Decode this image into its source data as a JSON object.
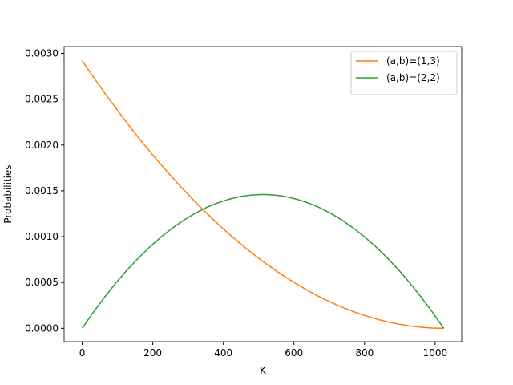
{
  "chart_data": {
    "type": "line",
    "xlabel": "K",
    "ylabel": "Probabilities",
    "x": [
      0,
      32,
      64,
      96,
      128,
      160,
      192,
      224,
      256,
      288,
      320,
      352,
      384,
      416,
      448,
      480,
      512,
      544,
      576,
      608,
      640,
      672,
      704,
      736,
      768,
      800,
      832,
      864,
      896,
      928,
      960,
      992,
      1024
    ],
    "series": [
      {
        "name": "(a,b)=(1,3)",
        "color": "#ff7f0e",
        "values": [
          0.002921,
          0.002741,
          0.002567,
          0.002399,
          0.002236,
          0.002079,
          0.001928,
          0.001783,
          0.001643,
          0.001509,
          0.001381,
          0.001258,
          0.001141,
          0.00103,
          0.000924,
          0.000824,
          0.00073,
          0.000642,
          0.000559,
          0.000482,
          0.000411,
          0.000345,
          0.000285,
          0.000231,
          0.000183,
          0.00014,
          0.000103,
          7.1e-05,
          4.6e-05,
          2.6e-05,
          1.1e-05,
          3e-06,
          0
        ]
      },
      {
        "name": "(a,b)=(2,2)",
        "color": "#2ca02c",
        "values": [
          0,
          0.000177,
          0.000342,
          0.000496,
          0.000639,
          0.00077,
          0.00089,
          0.000998,
          0.001095,
          0.001181,
          0.001255,
          0.001318,
          0.001369,
          0.001409,
          0.001438,
          0.001455,
          0.001461,
          0.001455,
          0.001438,
          0.001409,
          0.001369,
          0.001318,
          0.001255,
          0.001181,
          0.001095,
          0.000998,
          0.00089,
          0.00077,
          0.000639,
          0.000496,
          0.000342,
          0.000177,
          0
        ]
      }
    ],
    "xlim": [
      -51.2,
      1075.2
    ],
    "ylim": [
      -0.000146,
      0.003075
    ],
    "xticks": [
      0,
      200,
      400,
      600,
      800,
      1000
    ],
    "yticks": [
      {
        "value": 0,
        "label": "0.0000"
      },
      {
        "value": 0.0005,
        "label": "0.0005"
      },
      {
        "value": 0.001,
        "label": "0.0010"
      },
      {
        "value": 0.0015,
        "label": "0.0015"
      },
      {
        "value": 0.002,
        "label": "0.0020"
      },
      {
        "value": 0.0025,
        "label": "0.0025"
      },
      {
        "value": 0.003,
        "label": "0.0030"
      }
    ],
    "legend": "upper right"
  }
}
